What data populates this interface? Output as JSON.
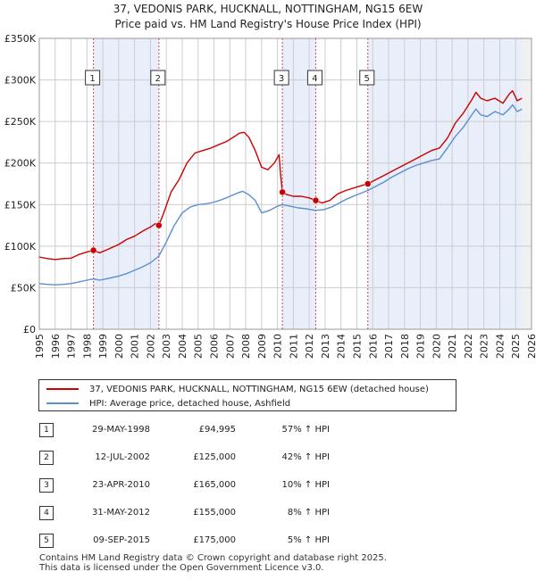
{
  "chart_data": {
    "type": "line",
    "title_line1": "37, VEDONIS PARK, HUCKNALL, NOTTINGHAM, NG15 6EW",
    "title_line2": "Price paid vs. HM Land Registry's House Price Index (HPI)",
    "xlabel": "",
    "ylabel": "",
    "xlim": [
      1995,
      2026
    ],
    "ylim": [
      0,
      350000
    ],
    "grid": true,
    "legend_position": "below",
    "y_ticks": [
      {
        "value": 0,
        "label": "£0"
      },
      {
        "value": 50000,
        "label": "£50K"
      },
      {
        "value": 100000,
        "label": "£100K"
      },
      {
        "value": 150000,
        "label": "£150K"
      },
      {
        "value": 200000,
        "label": "£200K"
      },
      {
        "value": 250000,
        "label": "£250K"
      },
      {
        "value": 300000,
        "label": "£300K"
      },
      {
        "value": 350000,
        "label": "£350K"
      }
    ],
    "x_ticks": [
      "1995",
      "1996",
      "1997",
      "1998",
      "1999",
      "2000",
      "2001",
      "2002",
      "2003",
      "2004",
      "2005",
      "2006",
      "2007",
      "2008",
      "2009",
      "2010",
      "2011",
      "2012",
      "2013",
      "2014",
      "2015",
      "2016",
      "2017",
      "2018",
      "2019",
      "2020",
      "2021",
      "2022",
      "2023",
      "2024",
      "2025",
      "2026"
    ],
    "shaded_spans": [
      [
        1998.41,
        2002.53
      ],
      [
        2010.31,
        2012.41
      ],
      [
        2015.69,
        2025.4
      ]
    ],
    "future_span_start": 2025.4,
    "series": [
      {
        "name": "37, VEDONIS PARK, HUCKNALL, NOTTINGHAM, NG15 6EW (detached house)",
        "color": "#cc0000",
        "points": [
          [
            1995.0,
            87000
          ],
          [
            1995.5,
            85000
          ],
          [
            1996.0,
            84000
          ],
          [
            1996.5,
            85000
          ],
          [
            1997.0,
            85500
          ],
          [
            1997.5,
            90000
          ],
          [
            1998.0,
            93000
          ],
          [
            1998.41,
            94995
          ],
          [
            1998.8,
            92000
          ],
          [
            1999.3,
            96000
          ],
          [
            2000.0,
            102000
          ],
          [
            2000.5,
            108000
          ],
          [
            2001.0,
            112000
          ],
          [
            2001.5,
            118000
          ],
          [
            2002.0,
            123000
          ],
          [
            2002.3,
            127000
          ],
          [
            2002.53,
            125000
          ],
          [
            2002.8,
            138000
          ],
          [
            2003.3,
            165000
          ],
          [
            2003.8,
            180000
          ],
          [
            2004.3,
            200000
          ],
          [
            2004.8,
            212000
          ],
          [
            2005.3,
            215000
          ],
          [
            2005.8,
            218000
          ],
          [
            2006.3,
            222000
          ],
          [
            2006.8,
            226000
          ],
          [
            2007.3,
            232000
          ],
          [
            2007.6,
            236000
          ],
          [
            2007.9,
            237000
          ],
          [
            2008.2,
            231000
          ],
          [
            2008.6,
            215000
          ],
          [
            2009.0,
            195000
          ],
          [
            2009.4,
            192000
          ],
          [
            2009.8,
            200000
          ],
          [
            2010.1,
            210000
          ],
          [
            2010.2,
            185000
          ],
          [
            2010.31,
            165000
          ],
          [
            2010.6,
            162000
          ],
          [
            2011.0,
            160000
          ],
          [
            2011.5,
            160000
          ],
          [
            2012.0,
            158000
          ],
          [
            2012.41,
            155000
          ],
          [
            2012.8,
            152000
          ],
          [
            2013.3,
            155000
          ],
          [
            2013.8,
            163000
          ],
          [
            2014.3,
            167000
          ],
          [
            2014.8,
            170000
          ],
          [
            2015.3,
            173000
          ],
          [
            2015.69,
            175000
          ],
          [
            2016.2,
            180000
          ],
          [
            2016.7,
            185000
          ],
          [
            2017.2,
            190000
          ],
          [
            2017.7,
            195000
          ],
          [
            2018.2,
            200000
          ],
          [
            2018.7,
            205000
          ],
          [
            2019.2,
            210000
          ],
          [
            2019.7,
            215000
          ],
          [
            2020.2,
            218000
          ],
          [
            2020.7,
            230000
          ],
          [
            2021.2,
            248000
          ],
          [
            2021.7,
            260000
          ],
          [
            2022.2,
            275000
          ],
          [
            2022.5,
            285000
          ],
          [
            2022.8,
            278000
          ],
          [
            2023.2,
            275000
          ],
          [
            2023.7,
            278000
          ],
          [
            2024.2,
            272000
          ],
          [
            2024.6,
            283000
          ],
          [
            2024.8,
            287000
          ],
          [
            2025.1,
            275000
          ],
          [
            2025.4,
            278000
          ]
        ]
      },
      {
        "name": "HPI: Average price, detached house, Ashfield",
        "color": "#5b8fd0",
        "points": [
          [
            1995.0,
            55000
          ],
          [
            1995.5,
            54000
          ],
          [
            1996.0,
            53500
          ],
          [
            1996.5,
            54000
          ],
          [
            1997.0,
            55000
          ],
          [
            1997.5,
            57000
          ],
          [
            1998.0,
            59000
          ],
          [
            1998.41,
            60500
          ],
          [
            1998.8,
            59000
          ],
          [
            1999.3,
            61000
          ],
          [
            2000.0,
            64000
          ],
          [
            2000.5,
            67000
          ],
          [
            2001.0,
            71000
          ],
          [
            2001.5,
            75000
          ],
          [
            2002.0,
            80000
          ],
          [
            2002.53,
            88000
          ],
          [
            2003.0,
            105000
          ],
          [
            2003.5,
            125000
          ],
          [
            2004.0,
            140000
          ],
          [
            2004.5,
            147000
          ],
          [
            2005.0,
            150000
          ],
          [
            2005.5,
            151000
          ],
          [
            2006.0,
            153000
          ],
          [
            2006.5,
            156000
          ],
          [
            2007.0,
            160000
          ],
          [
            2007.5,
            164000
          ],
          [
            2007.8,
            166000
          ],
          [
            2008.2,
            162000
          ],
          [
            2008.6,
            155000
          ],
          [
            2009.0,
            140000
          ],
          [
            2009.5,
            143000
          ],
          [
            2010.0,
            148000
          ],
          [
            2010.31,
            150000
          ],
          [
            2010.8,
            148000
          ],
          [
            2011.3,
            146000
          ],
          [
            2011.8,
            145000
          ],
          [
            2012.41,
            143000
          ],
          [
            2012.9,
            144000
          ],
          [
            2013.4,
            147000
          ],
          [
            2013.9,
            152000
          ],
          [
            2014.4,
            157000
          ],
          [
            2014.9,
            161000
          ],
          [
            2015.69,
            167000
          ],
          [
            2016.2,
            172000
          ],
          [
            2016.7,
            177000
          ],
          [
            2017.2,
            183000
          ],
          [
            2017.7,
            188000
          ],
          [
            2018.2,
            193000
          ],
          [
            2018.7,
            197000
          ],
          [
            2019.2,
            200000
          ],
          [
            2019.7,
            203000
          ],
          [
            2020.2,
            205000
          ],
          [
            2020.7,
            218000
          ],
          [
            2021.2,
            232000
          ],
          [
            2021.7,
            243000
          ],
          [
            2022.2,
            257000
          ],
          [
            2022.5,
            265000
          ],
          [
            2022.8,
            258000
          ],
          [
            2023.2,
            256000
          ],
          [
            2023.7,
            262000
          ],
          [
            2024.2,
            258000
          ],
          [
            2024.6,
            265000
          ],
          [
            2024.8,
            270000
          ],
          [
            2025.1,
            262000
          ],
          [
            2025.4,
            265000
          ]
        ]
      }
    ],
    "sale_markers": [
      {
        "id": "1",
        "year": 1998.41,
        "price": 94995
      },
      {
        "id": "2",
        "year": 2002.53,
        "price": 125000
      },
      {
        "id": "3",
        "year": 2010.31,
        "price": 165000
      },
      {
        "id": "4",
        "year": 2012.41,
        "price": 155000
      },
      {
        "id": "5",
        "year": 2015.69,
        "price": 175000
      }
    ]
  },
  "legend": {
    "property_label": "37, VEDONIS PARK, HUCKNALL, NOTTINGHAM, NG15 6EW (detached house)",
    "hpi_label": "HPI: Average price, detached house, Ashfield"
  },
  "sales": [
    {
      "num": "1",
      "date": "29-MAY-1998",
      "price": "£94,995",
      "hpi": "57% ↑ HPI"
    },
    {
      "num": "2",
      "date": "12-JUL-2002",
      "price": "£125,000",
      "hpi": "42% ↑ HPI"
    },
    {
      "num": "3",
      "date": "23-APR-2010",
      "price": "£165,000",
      "hpi": "10% ↑ HPI"
    },
    {
      "num": "4",
      "date": "31-MAY-2012",
      "price": "£155,000",
      "hpi": "8% ↑ HPI"
    },
    {
      "num": "5",
      "date": "09-SEP-2015",
      "price": "£175,000",
      "hpi": "5% ↑ HPI"
    }
  ],
  "footer": {
    "line1": "Contains HM Land Registry data © Crown copyright and database right 2025.",
    "line2": "This data is licensed under the Open Government Licence v3.0."
  }
}
